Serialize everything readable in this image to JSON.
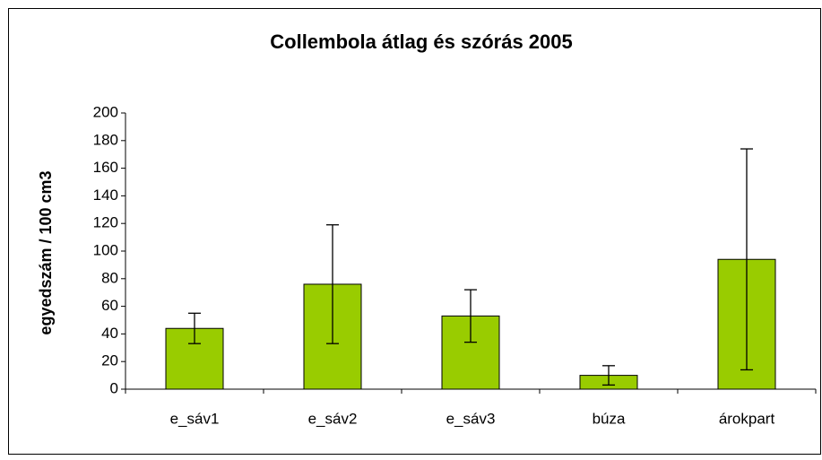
{
  "chart_data": {
    "type": "bar",
    "title": "Collembola átlag és szórás 2005",
    "y_label": "egyedszám / 100 cm3",
    "categories": [
      "e_sáv1",
      "e_sáv2",
      "e_sáv3",
      "búza",
      "árokpart"
    ],
    "values": [
      44,
      76,
      53,
      10,
      94
    ],
    "errors": [
      11,
      43,
      19,
      7,
      80
    ],
    "color": "#99cc00",
    "ylim": [
      0,
      200
    ],
    "yticks": [
      0,
      20,
      40,
      60,
      80,
      100,
      120,
      140,
      160,
      180,
      200
    ],
    "grid": false
  }
}
